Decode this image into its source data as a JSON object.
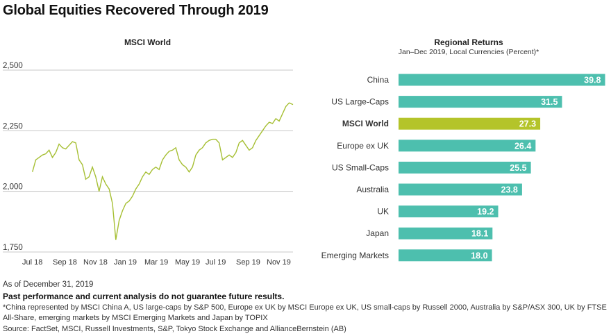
{
  "title": "Global Equities Recovered Through 2019",
  "footer": {
    "asof": "As of December 31, 2019",
    "disclaimer": "Past performance and current analysis do not guarantee future results.",
    "note": "*China represented by MSCI China A, US large-caps by S&P 500, Europe ex UK by MSCI Europe ex UK, US small-caps by Russell 2000, Australia by S&P/ASX 300, UK by FTSE All-Share, emerging markets by MSCI Emerging Markets and Japan by TOPIX",
    "source": "Source: FactSet, MSCI, Russell Investments, S&P, Tokyo Stock Exchange and AllianceBernstein (AB)"
  },
  "colors": {
    "line": "#a6bf33",
    "bar": "#4dbfae",
    "highlight": "#b4c42a",
    "grid": "#c8c8c8"
  },
  "chart_data": [
    {
      "type": "line",
      "title": "MSCI World",
      "ylim": [
        1750,
        2500
      ],
      "yticks": [
        "2,500",
        "2,250",
        "2,000",
        "1,750"
      ],
      "ytick_values": [
        2500,
        2250,
        2000,
        1750
      ],
      "xticks": [
        "Jul 18",
        "Sep 18",
        "Nov 18",
        "Jan 19",
        "Mar 19",
        "May 19",
        "Jul 19",
        "Sep 19",
        "Nov 19"
      ],
      "xlim": [
        "2018-07-01",
        "2019-12-31"
      ],
      "grid": true,
      "series": [
        {
          "points": [
            [
              "2018-07-02",
              2080
            ],
            [
              "2018-07-09",
              2130
            ],
            [
              "2018-07-16",
              2140
            ],
            [
              "2018-07-23",
              2150
            ],
            [
              "2018-07-30",
              2155
            ],
            [
              "2018-08-06",
              2170
            ],
            [
              "2018-08-13",
              2140
            ],
            [
              "2018-08-20",
              2160
            ],
            [
              "2018-08-27",
              2195
            ],
            [
              "2018-09-03",
              2180
            ],
            [
              "2018-09-10",
              2175
            ],
            [
              "2018-09-17",
              2190
            ],
            [
              "2018-09-24",
              2205
            ],
            [
              "2018-10-01",
              2200
            ],
            [
              "2018-10-08",
              2130
            ],
            [
              "2018-10-15",
              2110
            ],
            [
              "2018-10-22",
              2050
            ],
            [
              "2018-10-29",
              2060
            ],
            [
              "2018-11-05",
              2100
            ],
            [
              "2018-11-12",
              2060
            ],
            [
              "2018-11-19",
              2000
            ],
            [
              "2018-11-26",
              2060
            ],
            [
              "2018-12-03",
              2030
            ],
            [
              "2018-12-10",
              2010
            ],
            [
              "2018-12-17",
              1950
            ],
            [
              "2018-12-24",
              1800
            ],
            [
              "2018-12-31",
              1880
            ],
            [
              "2019-01-07",
              1920
            ],
            [
              "2019-01-14",
              1950
            ],
            [
              "2019-01-21",
              1960
            ],
            [
              "2019-01-28",
              1980
            ],
            [
              "2019-02-04",
              2010
            ],
            [
              "2019-02-11",
              2030
            ],
            [
              "2019-02-18",
              2060
            ],
            [
              "2019-02-25",
              2080
            ],
            [
              "2019-03-04",
              2070
            ],
            [
              "2019-03-11",
              2090
            ],
            [
              "2019-03-18",
              2100
            ],
            [
              "2019-03-25",
              2090
            ],
            [
              "2019-04-01",
              2130
            ],
            [
              "2019-04-08",
              2150
            ],
            [
              "2019-04-15",
              2165
            ],
            [
              "2019-04-22",
              2170
            ],
            [
              "2019-04-29",
              2180
            ],
            [
              "2019-05-06",
              2130
            ],
            [
              "2019-05-13",
              2110
            ],
            [
              "2019-05-20",
              2100
            ],
            [
              "2019-05-27",
              2080
            ],
            [
              "2019-06-03",
              2100
            ],
            [
              "2019-06-10",
              2150
            ],
            [
              "2019-06-17",
              2170
            ],
            [
              "2019-06-24",
              2180
            ],
            [
              "2019-07-01",
              2200
            ],
            [
              "2019-07-08",
              2210
            ],
            [
              "2019-07-15",
              2215
            ],
            [
              "2019-07-22",
              2215
            ],
            [
              "2019-07-29",
              2200
            ],
            [
              "2019-08-05",
              2130
            ],
            [
              "2019-08-12",
              2140
            ],
            [
              "2019-08-19",
              2150
            ],
            [
              "2019-08-26",
              2140
            ],
            [
              "2019-09-02",
              2160
            ],
            [
              "2019-09-09",
              2200
            ],
            [
              "2019-09-16",
              2210
            ],
            [
              "2019-09-23",
              2190
            ],
            [
              "2019-09-30",
              2170
            ],
            [
              "2019-10-07",
              2180
            ],
            [
              "2019-10-14",
              2210
            ],
            [
              "2019-10-21",
              2230
            ],
            [
              "2019-10-28",
              2250
            ],
            [
              "2019-11-04",
              2270
            ],
            [
              "2019-11-11",
              2285
            ],
            [
              "2019-11-18",
              2280
            ],
            [
              "2019-11-25",
              2300
            ],
            [
              "2019-12-02",
              2290
            ],
            [
              "2019-12-09",
              2320
            ],
            [
              "2019-12-16",
              2350
            ],
            [
              "2019-12-23",
              2365
            ],
            [
              "2019-12-31",
              2358
            ]
          ]
        }
      ]
    },
    {
      "type": "bar",
      "title": "Regional Returns",
      "subtitle": "Jan–Dec 2019, Local Currencies (Percent)*",
      "categories": [
        "China",
        "US Large-Caps",
        "MSCI World",
        "Europe ex UK",
        "US Small-Caps",
        "Australia",
        "UK",
        "Japan",
        "Emerging Markets"
      ],
      "values": [
        39.8,
        31.5,
        27.3,
        26.4,
        25.5,
        23.8,
        19.2,
        18.1,
        18.0
      ],
      "value_labels": [
        "39.8",
        "31.5",
        "27.3",
        "26.4",
        "25.5",
        "23.8",
        "19.2",
        "18.1",
        "18.0"
      ],
      "highlight": "MSCI World",
      "xlim": [
        0,
        40
      ]
    }
  ]
}
